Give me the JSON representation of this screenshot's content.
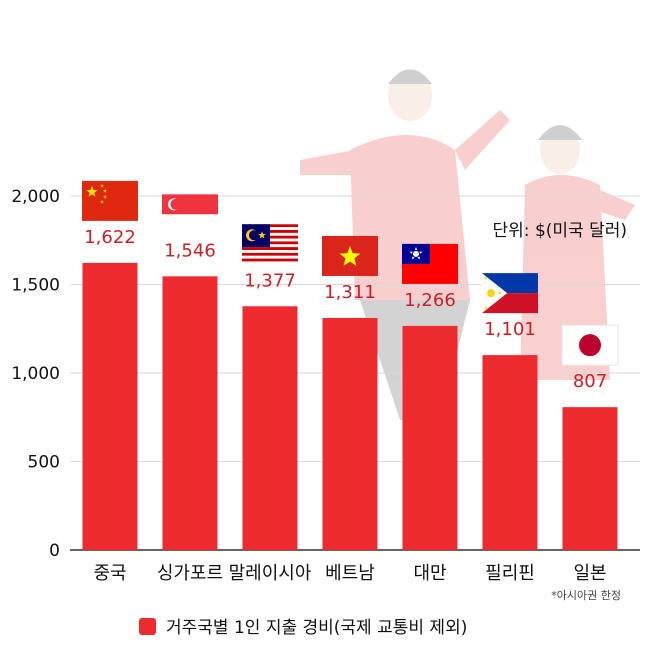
{
  "chart_data": {
    "type": "bar",
    "categories": [
      "중국",
      "싱가포르",
      "말레이시아",
      "베트남",
      "대만",
      "필리핀",
      "일본"
    ],
    "values": [
      1622,
      1546,
      1377,
      1311,
      1266,
      1101,
      807
    ],
    "value_labels": [
      "1,622",
      "1,546",
      "1,377",
      "1,311",
      "1,266",
      "1,101",
      "807"
    ],
    "flags": [
      "china-flag",
      "singapore-flag",
      "malaysia-flag",
      "vietnam-flag",
      "taiwan-flag",
      "philippines-flag",
      "japan-flag"
    ],
    "y_ticks": [
      0,
      500,
      1000,
      1500,
      2000
    ],
    "y_tick_labels": [
      "0",
      "500",
      "1,000",
      "1,500",
      "2,000"
    ],
    "ylim": [
      0,
      2000
    ],
    "grid": true,
    "unit_note": "단위: $(미국 달러)",
    "footnote": "*아시아권 한정",
    "legend": {
      "label": "거주국별 1인 지출 경비(국제 교통비 제외)",
      "placement": "bottom-center"
    },
    "colors": {
      "bar": "#ed2b2f",
      "label": "#cc1f24",
      "grid": "#d9d9d9"
    }
  }
}
